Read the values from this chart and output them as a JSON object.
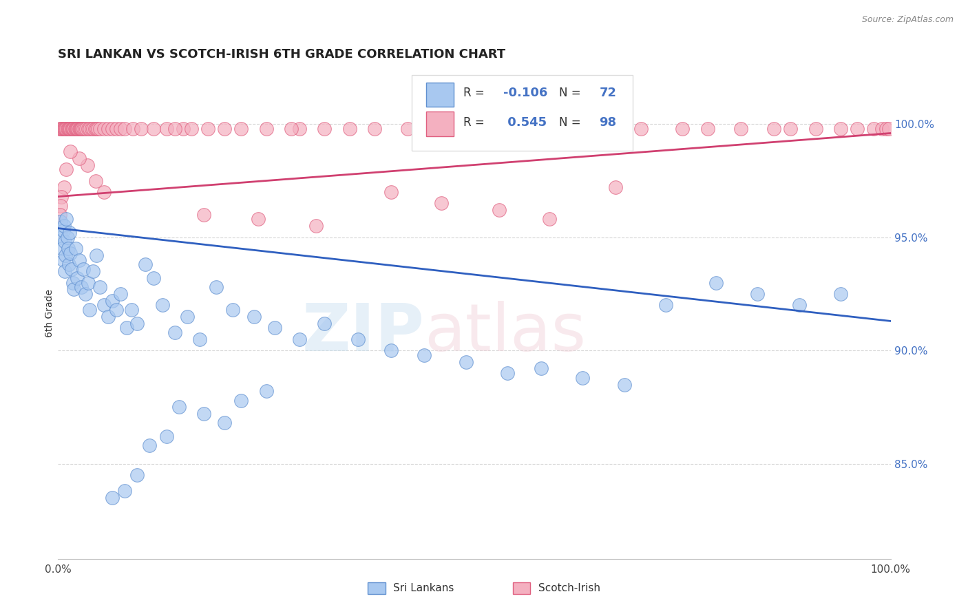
{
  "title": "SRI LANKAN VS SCOTCH-IRISH 6TH GRADE CORRELATION CHART",
  "source": "Source: ZipAtlas.com",
  "ylabel": "6th Grade",
  "xlim": [
    0.0,
    1.0
  ],
  "ylim": [
    0.808,
    1.025
  ],
  "y_tick_vals": [
    0.85,
    0.9,
    0.95,
    1.0
  ],
  "y_tick_labels": [
    "85.0%",
    "90.0%",
    "95.0%",
    "100.0%"
  ],
  "sri_lankan_color": "#A8C8F0",
  "scotch_irish_color": "#F4B0C0",
  "sri_lankan_edge": "#6090D0",
  "scotch_irish_edge": "#E06080",
  "trend_blue": "#3060C0",
  "trend_pink": "#D04070",
  "R_sri": -0.106,
  "N_sri": 72,
  "R_scotch": 0.545,
  "N_scotch": 98,
  "background": "#FFFFFF",
  "sri_trend_x0": 0.0,
  "sri_trend_y0": 0.954,
  "sri_trend_x1": 1.0,
  "sri_trend_y1": 0.913,
  "scotch_trend_x0": 0.0,
  "scotch_trend_y0": 0.968,
  "scotch_trend_x1": 1.0,
  "scotch_trend_y1": 0.996,
  "sri_x": [
    0.003,
    0.004,
    0.005,
    0.006,
    0.006,
    0.007,
    0.008,
    0.008,
    0.009,
    0.01,
    0.011,
    0.012,
    0.013,
    0.014,
    0.015,
    0.016,
    0.018,
    0.019,
    0.021,
    0.023,
    0.025,
    0.028,
    0.03,
    0.033,
    0.036,
    0.038,
    0.042,
    0.046,
    0.05,
    0.055,
    0.06,
    0.065,
    0.07,
    0.075,
    0.082,
    0.088,
    0.095,
    0.105,
    0.115,
    0.125,
    0.14,
    0.155,
    0.17,
    0.19,
    0.21,
    0.235,
    0.26,
    0.29,
    0.32,
    0.36,
    0.4,
    0.44,
    0.49,
    0.54,
    0.58,
    0.63,
    0.68,
    0.73,
    0.79,
    0.84,
    0.89,
    0.94,
    0.145,
    0.175,
    0.2,
    0.22,
    0.25,
    0.13,
    0.11,
    0.095,
    0.08,
    0.065
  ],
  "sri_y": [
    0.957,
    0.95,
    0.945,
    0.953,
    0.94,
    0.955,
    0.948,
    0.935,
    0.942,
    0.958,
    0.95,
    0.945,
    0.938,
    0.952,
    0.943,
    0.936,
    0.93,
    0.927,
    0.945,
    0.932,
    0.94,
    0.928,
    0.936,
    0.925,
    0.93,
    0.918,
    0.935,
    0.942,
    0.928,
    0.92,
    0.915,
    0.922,
    0.918,
    0.925,
    0.91,
    0.918,
    0.912,
    0.938,
    0.932,
    0.92,
    0.908,
    0.915,
    0.905,
    0.928,
    0.918,
    0.915,
    0.91,
    0.905,
    0.912,
    0.905,
    0.9,
    0.898,
    0.895,
    0.89,
    0.892,
    0.888,
    0.885,
    0.92,
    0.93,
    0.925,
    0.92,
    0.925,
    0.875,
    0.872,
    0.868,
    0.878,
    0.882,
    0.862,
    0.858,
    0.845,
    0.838,
    0.835
  ],
  "scotch_x": [
    0.002,
    0.003,
    0.004,
    0.005,
    0.006,
    0.007,
    0.008,
    0.009,
    0.01,
    0.011,
    0.012,
    0.013,
    0.014,
    0.015,
    0.016,
    0.017,
    0.018,
    0.019,
    0.02,
    0.021,
    0.022,
    0.023,
    0.024,
    0.025,
    0.026,
    0.027,
    0.028,
    0.029,
    0.03,
    0.032,
    0.034,
    0.036,
    0.038,
    0.04,
    0.042,
    0.044,
    0.046,
    0.048,
    0.05,
    0.055,
    0.06,
    0.065,
    0.07,
    0.075,
    0.08,
    0.09,
    0.1,
    0.115,
    0.13,
    0.15,
    0.2,
    0.25,
    0.29,
    0.35,
    0.42,
    0.14,
    0.16,
    0.18,
    0.22,
    0.28,
    0.32,
    0.38,
    0.45,
    0.5,
    0.56,
    0.62,
    0.7,
    0.75,
    0.82,
    0.88,
    0.94,
    0.98,
    0.99,
    0.995,
    0.998,
    0.65,
    0.78,
    0.86,
    0.91,
    0.96,
    0.045,
    0.055,
    0.035,
    0.025,
    0.015,
    0.01,
    0.007,
    0.004,
    0.003,
    0.002,
    0.175,
    0.24,
    0.31,
    0.4,
    0.46,
    0.53,
    0.59,
    0.67
  ],
  "scotch_y": [
    0.998,
    0.998,
    0.998,
    0.998,
    0.998,
    0.998,
    0.998,
    0.998,
    0.998,
    0.998,
    0.998,
    0.998,
    0.998,
    0.998,
    0.998,
    0.998,
    0.998,
    0.998,
    0.998,
    0.998,
    0.998,
    0.998,
    0.998,
    0.998,
    0.998,
    0.998,
    0.998,
    0.998,
    0.998,
    0.998,
    0.998,
    0.998,
    0.998,
    0.998,
    0.998,
    0.998,
    0.998,
    0.998,
    0.998,
    0.998,
    0.998,
    0.998,
    0.998,
    0.998,
    0.998,
    0.998,
    0.998,
    0.998,
    0.998,
    0.998,
    0.998,
    0.998,
    0.998,
    0.998,
    0.998,
    0.998,
    0.998,
    0.998,
    0.998,
    0.998,
    0.998,
    0.998,
    0.998,
    0.998,
    0.998,
    0.998,
    0.998,
    0.998,
    0.998,
    0.998,
    0.998,
    0.998,
    0.998,
    0.998,
    0.998,
    0.998,
    0.998,
    0.998,
    0.998,
    0.998,
    0.975,
    0.97,
    0.982,
    0.985,
    0.988,
    0.98,
    0.972,
    0.968,
    0.964,
    0.96,
    0.96,
    0.958,
    0.955,
    0.97,
    0.965,
    0.962,
    0.958,
    0.972
  ]
}
